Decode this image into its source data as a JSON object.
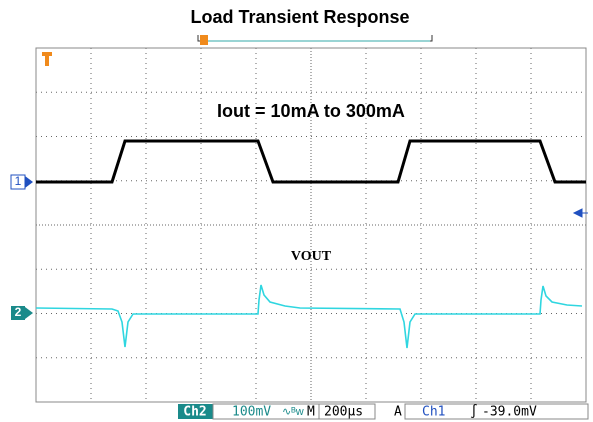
{
  "title": "Load Transient Response",
  "annotation": "Iout = 10mA to 300mA",
  "trace_label": "VOUT",
  "channel_markers": [
    "1",
    "2"
  ],
  "status_bar": {
    "channel": "Ch2",
    "scale": "100mV",
    "timebase_label": "M",
    "timebase": "200µs",
    "acquire": "A",
    "trigger_source": "Ch1",
    "trigger_level": "-39.0mV"
  }
}
